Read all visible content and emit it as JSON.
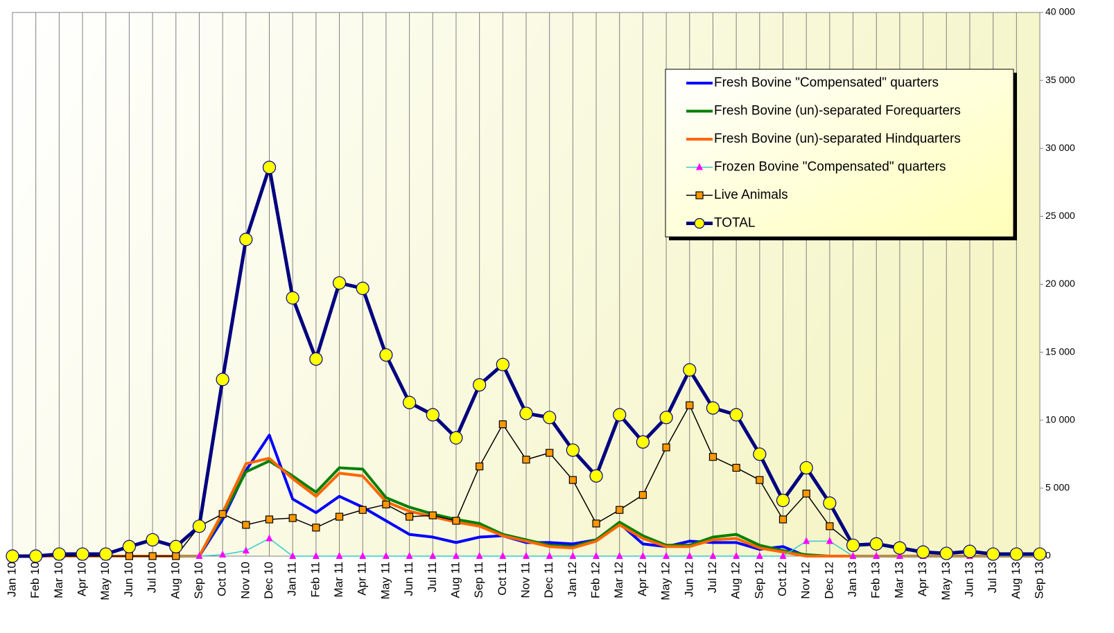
{
  "chart_data": {
    "type": "line",
    "categories": [
      "Jan 10",
      "Feb 10",
      "Mar 10",
      "Apr 10",
      "May 10",
      "Jun 10",
      "Jul 10",
      "Aug 10",
      "Sep 10",
      "Oct 10",
      "Nov 10",
      "Dec 10",
      "Jan 11",
      "Feb 11",
      "Mar 11",
      "Apr 11",
      "May 11",
      "Jun 11",
      "Jul 11",
      "Aug 11",
      "Sep 11",
      "Oct 11",
      "Nov 11",
      "Dec 11",
      "Jan 12",
      "Feb 12",
      "Mar 12",
      "Apr 12",
      "May 12",
      "Jun 12",
      "Jul 12",
      "Aug 12",
      "Sep 12",
      "Oct 12",
      "Nov 12",
      "Dec 12",
      "Jan 13",
      "Feb 13",
      "Mar 13",
      "Apr 13",
      "May 13",
      "Jun 13",
      "Jul 13",
      "Aug 13",
      "Sep 13"
    ],
    "series": [
      {
        "name": "Fresh Bovine \"Compensated\" quarters",
        "color": "#0000ff",
        "marker": "none",
        "line_width": 4,
        "values": [
          0,
          0,
          0,
          0,
          0,
          0,
          0,
          0,
          0,
          2700,
          6300,
          8900,
          4200,
          3200,
          4400,
          3600,
          2600,
          1600,
          1400,
          1000,
          1400,
          1500,
          1000,
          1000,
          900,
          1200,
          2400,
          900,
          700,
          1100,
          1000,
          1000,
          500,
          700,
          0,
          0,
          0,
          0,
          0,
          0,
          0,
          0,
          0,
          0,
          0
        ]
      },
      {
        "name": "Fresh Bovine (un)-separated Forequarters",
        "color": "#008000",
        "marker": "none",
        "line_width": 4,
        "values": [
          0,
          0,
          0,
          0,
          0,
          0,
          0,
          0,
          0,
          3000,
          6200,
          7000,
          5900,
          4700,
          6500,
          6400,
          4300,
          3600,
          3100,
          2700,
          2400,
          1600,
          1200,
          800,
          700,
          1200,
          2500,
          1500,
          800,
          800,
          1400,
          1600,
          800,
          400,
          100,
          0,
          0,
          0,
          0,
          0,
          0,
          0,
          0,
          0,
          0
        ]
      },
      {
        "name": "Fresh Bovine (un)-separated Hindquarters",
        "color": "#ff6600",
        "marker": "none",
        "line_width": 4,
        "values": [
          0,
          0,
          0,
          0,
          0,
          0,
          0,
          0,
          0,
          3200,
          6800,
          7200,
          5700,
          4400,
          6100,
          5900,
          4000,
          3300,
          2900,
          2500,
          2200,
          1500,
          1100,
          700,
          600,
          1100,
          2300,
          1300,
          700,
          700,
          1200,
          1300,
          600,
          300,
          0,
          0,
          0,
          0,
          0,
          0,
          0,
          0,
          0,
          0,
          0
        ]
      },
      {
        "name": "Frozen Bovine \"Compensated\" quarters",
        "color": "#33cccc",
        "marker": "triangle",
        "marker_color": "#ff00ff",
        "line_width": 1.5,
        "values": [
          0,
          0,
          0,
          0,
          0,
          0,
          0,
          0,
          0,
          100,
          400,
          1300,
          0,
          0,
          0,
          0,
          0,
          0,
          0,
          0,
          0,
          0,
          0,
          0,
          0,
          0,
          0,
          0,
          0,
          0,
          0,
          0,
          0,
          0,
          1100,
          1100,
          0,
          0,
          0,
          0,
          0,
          0,
          0,
          0,
          0
        ]
      },
      {
        "name": "Live Animals",
        "color": "#000000",
        "marker": "square",
        "marker_color": "#ff9900",
        "line_width": 1.5,
        "values": [
          0,
          0,
          0,
          0,
          0,
          0,
          0,
          0,
          2200,
          3100,
          2300,
          2700,
          2800,
          2100,
          2900,
          3400,
          3800,
          2900,
          3000,
          2600,
          6600,
          9700,
          7100,
          7600,
          5600,
          2400,
          3400,
          4500,
          8000,
          11100,
          7300,
          6500,
          5600,
          2700,
          4600,
          2200,
          800,
          900,
          600,
          300,
          200,
          350,
          150,
          150,
          150
        ]
      },
      {
        "name": "TOTAL",
        "color": "#000080",
        "marker": "circle",
        "marker_color": "#ffff00",
        "line_width": 5,
        "values": [
          0,
          0,
          150,
          150,
          150,
          700,
          1200,
          700,
          2200,
          13000,
          23300,
          28600,
          19000,
          14500,
          20100,
          19700,
          14800,
          11300,
          10400,
          8700,
          12600,
          14100,
          10500,
          10200,
          7800,
          5900,
          10400,
          8400,
          10200,
          13700,
          10900,
          10400,
          7500,
          4100,
          6500,
          3900,
          800,
          900,
          600,
          300,
          200,
          350,
          150,
          150,
          150
        ]
      }
    ],
    "ylim": [
      0,
      40000
    ],
    "yticks": [
      0,
      {
        "value": 5000,
        "label": "5 000"
      },
      {
        "value": 10000,
        "label": "10 000"
      },
      {
        "value": 15000,
        "label": "15 000"
      },
      {
        "value": 20000,
        "label": "20 000"
      },
      {
        "value": 25000,
        "label": "25 000"
      },
      {
        "value": 30000,
        "label": "30 000"
      },
      {
        "value": 35000,
        "label": "35 000"
      },
      {
        "value": 40000,
        "label": "40 000"
      }
    ],
    "grid": true,
    "legend": "upper right"
  }
}
